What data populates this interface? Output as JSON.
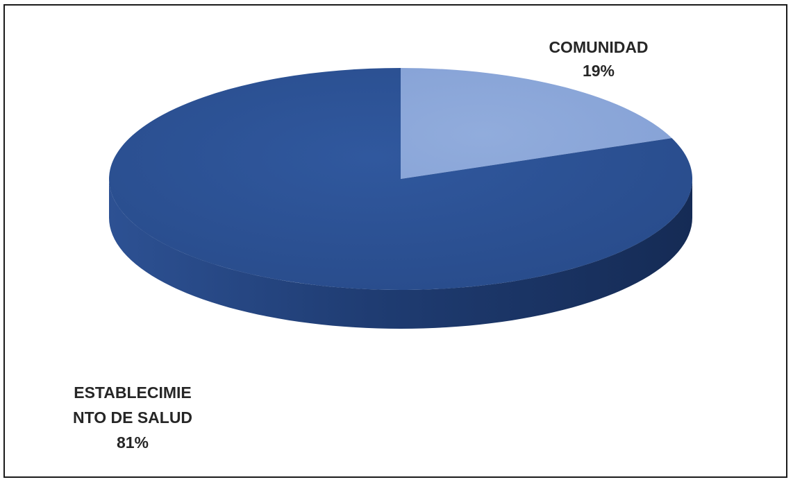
{
  "chart_data": {
    "type": "pie",
    "title": "",
    "slices": [
      {
        "label_lines": [
          "COMUNIDAD"
        ],
        "percent_label": "19%",
        "value": 19,
        "color": "#8EA9DB"
      },
      {
        "label_lines": [
          "ESTABLECIMIE",
          "NTO DE SALUD"
        ],
        "percent_label": "81%",
        "value": 81,
        "color": "#2F5597"
      }
    ],
    "legend": "none",
    "style": "3d"
  }
}
